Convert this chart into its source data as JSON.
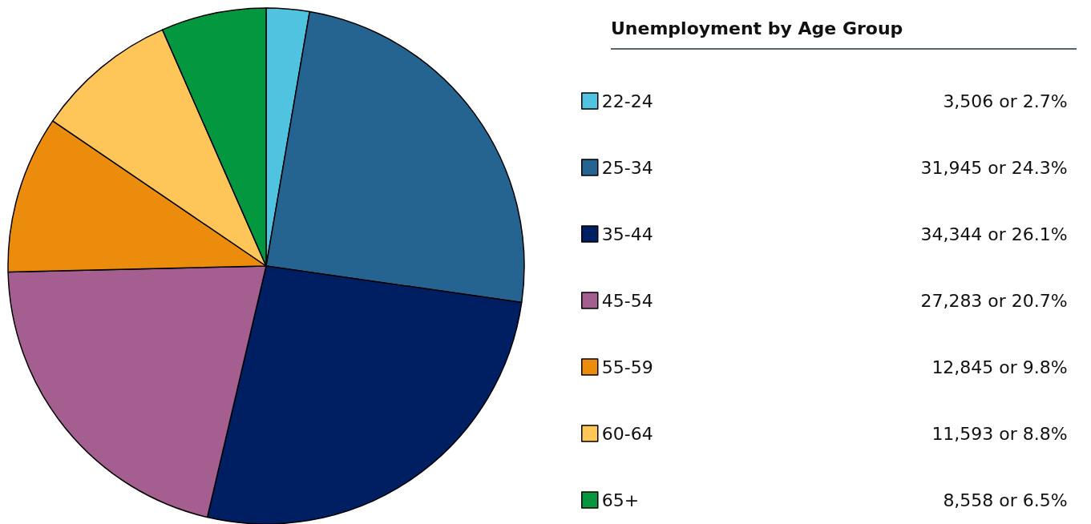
{
  "chart_data": {
    "type": "pie",
    "legend_title": "Unemployment by Age Group",
    "categories": [
      "22-24",
      "25-34",
      "35-44",
      "45-54",
      "55-59",
      "60-64",
      "65+"
    ],
    "values": [
      3506,
      31945,
      34344,
      27283,
      12845,
      11593,
      8558
    ],
    "value_labels": [
      "3,506 or 2.7%",
      "31,945 or 24.3%",
      "34,344 or 26.1%",
      "27,283 or 20.7%",
      "12,845 or 9.8%",
      "11,593 or 8.8%",
      "8,558 or 6.5%"
    ],
    "colors": [
      "#4fc3e0",
      "#256391",
      "#001f63",
      "#a45f90",
      "#ec8c0c",
      "#fec659",
      "#03973f"
    ],
    "legend": "right"
  }
}
